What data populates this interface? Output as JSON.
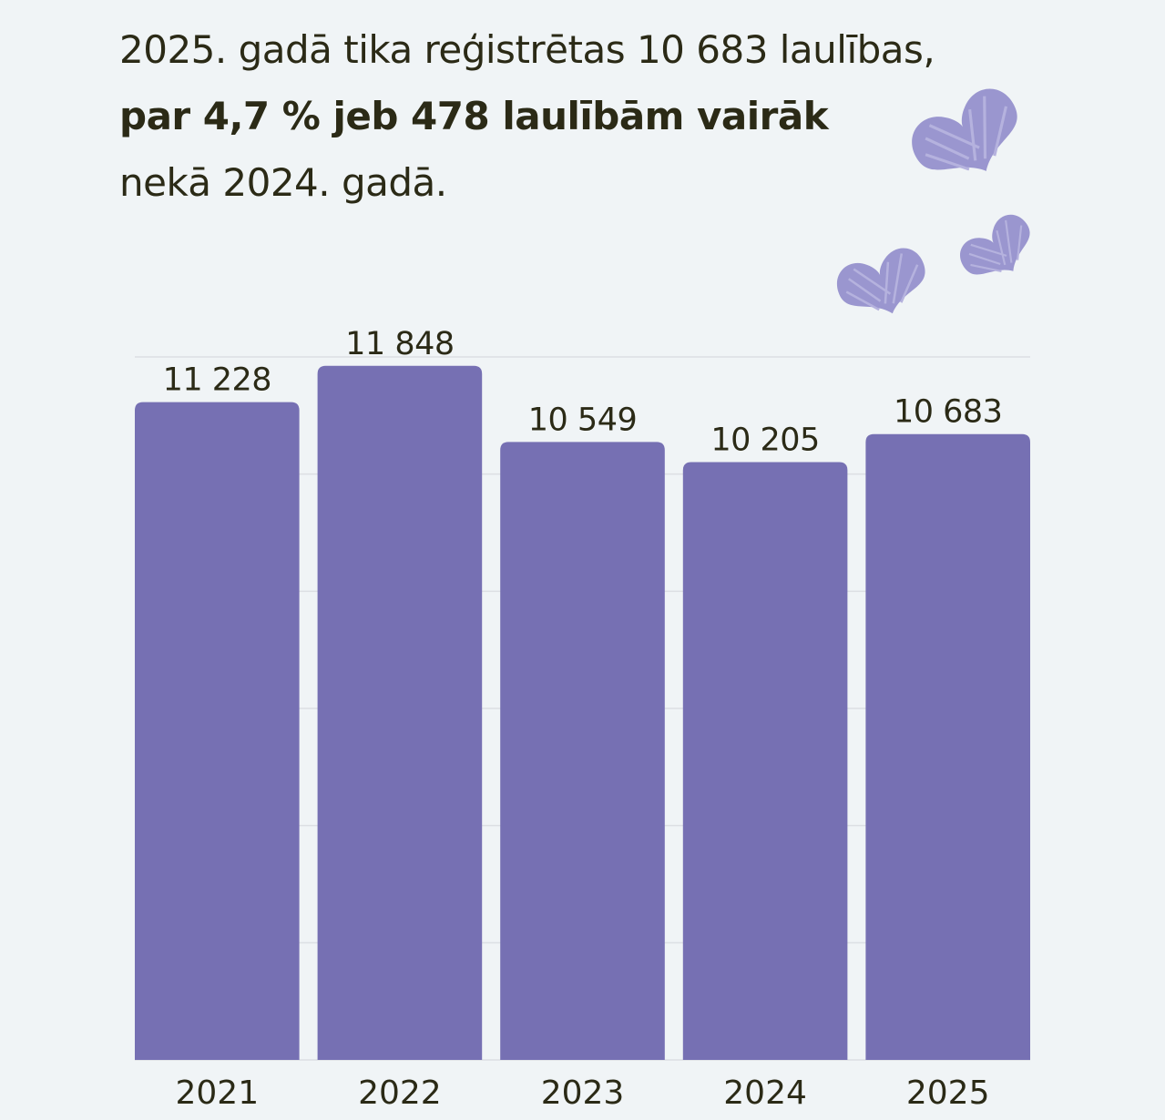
{
  "headline": {
    "line1": "2025. gadā tika reģistrētas 10 683 laulības,",
    "line2_bold": "par 4,7 % jeb 478 laulībām vairāk",
    "line3": "nekā 2024. gadā."
  },
  "colors": {
    "bar": "#7670b3",
    "heart": "#9a96cf",
    "gridline": "#dcdfe3",
    "background": "#f0f4f6",
    "text": "#2b2a16"
  },
  "decorations": [
    "heart-icon",
    "heart-icon",
    "heart-icon"
  ],
  "chart_data": {
    "type": "bar",
    "title": "",
    "xlabel": "",
    "ylabel": "",
    "categories": [
      "2021",
      "2022",
      "2023",
      "2024",
      "2025"
    ],
    "values": [
      11228,
      11848,
      10549,
      10205,
      10683
    ],
    "value_labels": [
      "11 228",
      "11 848",
      "10 549",
      "10 205",
      "10 683"
    ],
    "ylim": [
      0,
      12000
    ],
    "grid": true,
    "gridline_step": 2000,
    "legend": "none"
  }
}
